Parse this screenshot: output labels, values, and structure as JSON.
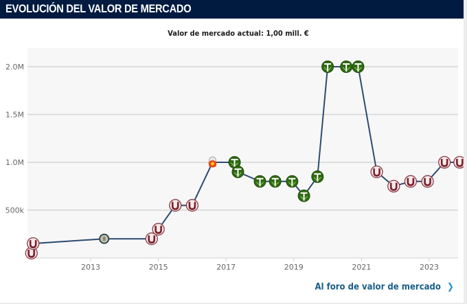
{
  "header": {
    "title": "EVOLUCIÓN DEL VALOR DE MERCADO"
  },
  "subtitle": "Valor de mercado actual: 1,00 mill. €",
  "footer": {
    "link_label": "Al foro de valor de mercado",
    "chevron_icon": "chevron-right-icon"
  },
  "colors": {
    "header_bg": "#001a40",
    "line": "#2d4a70",
    "grid": "#d6d6d6",
    "plot_bg": "#f7f7f7",
    "link": "#1a5f8a",
    "club_u": "#7a1f2b",
    "club_t": "#2f6b12"
  },
  "chart_data": {
    "type": "line",
    "title": "EVOLUCIÓN DEL VALOR DE MERCADO",
    "subtitle": "Valor de mercado actual: 1,00 mill. €",
    "xlabel": "",
    "ylabel": "",
    "xlim": [
      2011.2,
      2023.9
    ],
    "ylim": [
      0,
      2200000
    ],
    "grid": true,
    "x_ticks": [
      {
        "value": 2013,
        "label": "2013"
      },
      {
        "value": 2015,
        "label": "2015"
      },
      {
        "value": 2017,
        "label": "2017"
      },
      {
        "value": 2019,
        "label": "2019"
      },
      {
        "value": 2021,
        "label": "2021"
      },
      {
        "value": 2023,
        "label": "2023"
      }
    ],
    "y_ticks": [
      {
        "value": 500000,
        "label": "500k"
      },
      {
        "value": 1000000,
        "label": "1.0M"
      },
      {
        "value": 1500000,
        "label": "1.5M"
      },
      {
        "value": 2000000,
        "label": "2.0M"
      }
    ],
    "series": [
      {
        "name": "Valor de mercado",
        "points": [
          {
            "x": 2011.25,
            "y": 50000,
            "club": "universitario",
            "icon": "u-crest-icon"
          },
          {
            "x": 2011.3,
            "y": 150000,
            "club": "universitario",
            "icon": "u-crest-icon"
          },
          {
            "x": 2013.4,
            "y": 200000,
            "club": "other-grey",
            "icon": "club-crest-icon"
          },
          {
            "x": 2014.8,
            "y": 200000,
            "club": "universitario",
            "icon": "u-crest-icon"
          },
          {
            "x": 2015.0,
            "y": 300000,
            "club": "universitario",
            "icon": "u-crest-icon"
          },
          {
            "x": 2015.5,
            "y": 550000,
            "club": "universitario",
            "icon": "u-crest-icon"
          },
          {
            "x": 2016.0,
            "y": 550000,
            "club": "universitario",
            "icon": "u-crest-icon"
          },
          {
            "x": 2016.6,
            "y": 1000000,
            "club": "other-orange",
            "icon": "club-crest-icon"
          },
          {
            "x": 2017.25,
            "y": 1000000,
            "club": "timbers",
            "icon": "t-crest-icon"
          },
          {
            "x": 2017.35,
            "y": 900000,
            "club": "timbers",
            "icon": "t-crest-icon"
          },
          {
            "x": 2018.0,
            "y": 800000,
            "club": "timbers",
            "icon": "t-crest-icon"
          },
          {
            "x": 2018.45,
            "y": 800000,
            "club": "timbers",
            "icon": "t-crest-icon"
          },
          {
            "x": 2018.95,
            "y": 800000,
            "club": "timbers",
            "icon": "t-crest-icon"
          },
          {
            "x": 2019.3,
            "y": 650000,
            "club": "timbers",
            "icon": "t-crest-icon"
          },
          {
            "x": 2019.7,
            "y": 850000,
            "club": "timbers",
            "icon": "t-crest-icon"
          },
          {
            "x": 2020.0,
            "y": 2000000,
            "club": "timbers",
            "icon": "t-crest-icon"
          },
          {
            "x": 2020.55,
            "y": 2000000,
            "club": "timbers",
            "icon": "t-crest-icon"
          },
          {
            "x": 2020.9,
            "y": 2000000,
            "club": "timbers",
            "icon": "t-crest-icon"
          },
          {
            "x": 2021.45,
            "y": 900000,
            "club": "universitario",
            "icon": "u-crest-icon"
          },
          {
            "x": 2021.95,
            "y": 750000,
            "club": "universitario",
            "icon": "u-crest-icon"
          },
          {
            "x": 2022.45,
            "y": 800000,
            "club": "universitario",
            "icon": "u-crest-icon"
          },
          {
            "x": 2022.95,
            "y": 800000,
            "club": "universitario",
            "icon": "u-crest-icon"
          },
          {
            "x": 2023.45,
            "y": 1000000,
            "club": "universitario",
            "icon": "u-crest-icon"
          },
          {
            "x": 2023.9,
            "y": 1000000,
            "club": "universitario",
            "icon": "u-crest-icon"
          }
        ]
      }
    ]
  }
}
